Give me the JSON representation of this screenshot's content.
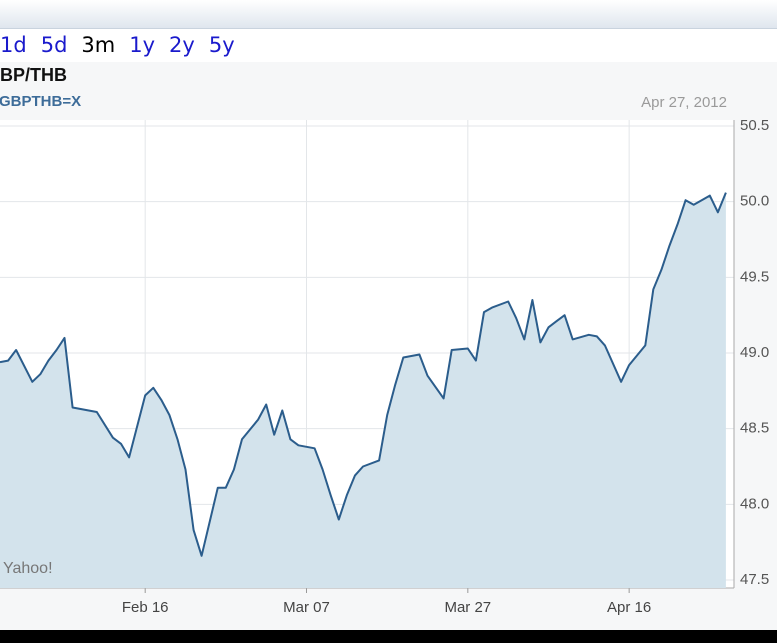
{
  "range_links": [
    "1d",
    "5d",
    "3m",
    "1y",
    "2y",
    "5y"
  ],
  "selected_link": "3m",
  "chart_data": {
    "type": "area",
    "title": "BP/THB",
    "subtitle": "GBPTHB=X",
    "date_label": "Apr 27, 2012",
    "watermark": "Yahoo!",
    "color": "#2b5d8c",
    "fill_color": "#d3e3ec",
    "grid": true,
    "x": [
      "2012-01-29",
      "2012-01-30",
      "2012-01-31",
      "2012-02-02",
      "2012-02-03",
      "2012-02-04",
      "2012-02-05",
      "2012-02-06",
      "2012-02-07",
      "2012-02-09",
      "2012-02-10",
      "2012-02-12",
      "2012-02-13",
      "2012-02-14",
      "2012-02-16",
      "2012-02-17",
      "2012-02-18",
      "2012-02-19",
      "2012-02-20",
      "2012-02-21",
      "2012-02-22",
      "2012-02-23",
      "2012-02-25",
      "2012-02-26",
      "2012-02-27",
      "2012-02-28",
      "2012-03-01",
      "2012-03-02",
      "2012-03-03",
      "2012-03-04",
      "2012-03-05",
      "2012-03-06",
      "2012-03-08",
      "2012-03-09",
      "2012-03-10",
      "2012-03-11",
      "2012-03-12",
      "2012-03-13",
      "2012-03-14",
      "2012-03-16",
      "2012-03-17",
      "2012-03-18",
      "2012-03-19",
      "2012-03-21",
      "2012-03-22",
      "2012-03-24",
      "2012-03-25",
      "2012-03-27",
      "2012-03-28",
      "2012-03-29",
      "2012-03-30",
      "2012-04-01",
      "2012-04-02",
      "2012-04-03",
      "2012-04-04",
      "2012-04-05",
      "2012-04-06",
      "2012-04-07",
      "2012-04-08",
      "2012-04-09",
      "2012-04-11",
      "2012-04-12",
      "2012-04-13",
      "2012-04-15",
      "2012-04-16",
      "2012-04-18",
      "2012-04-19",
      "2012-04-20",
      "2012-04-21",
      "2012-04-22",
      "2012-04-23",
      "2012-04-24",
      "2012-04-25",
      "2012-04-26",
      "2012-04-27",
      "2012-04-28"
    ],
    "values": [
      48.94,
      48.95,
      49.02,
      48.81,
      48.86,
      48.95,
      49.02,
      49.1,
      48.64,
      48.62,
      48.61,
      48.44,
      48.4,
      48.31,
      48.72,
      48.77,
      48.69,
      48.59,
      48.43,
      48.23,
      47.83,
      47.66,
      48.11,
      48.11,
      48.23,
      48.43,
      48.56,
      48.66,
      48.46,
      48.62,
      48.43,
      48.39,
      48.37,
      48.23,
      48.06,
      47.9,
      48.06,
      48.19,
      48.25,
      48.29,
      48.59,
      48.79,
      48.97,
      48.99,
      48.85,
      48.7,
      49.02,
      49.03,
      48.95,
      49.27,
      49.3,
      49.34,
      49.23,
      49.09,
      49.35,
      49.07,
      49.17,
      49.21,
      49.25,
      49.09,
      49.12,
      49.11,
      49.05,
      48.81,
      48.92,
      49.05,
      49.42,
      49.55,
      49.71,
      49.85,
      50.01,
      49.98,
      50.01,
      50.04,
      49.93,
      50.06
    ],
    "xlim": [
      "2012-01-29",
      "2012-04-29"
    ],
    "xticks": [
      {
        "value": "2012-02-16",
        "label": "Feb 16"
      },
      {
        "value": "2012-03-07",
        "label": "Mar 07"
      },
      {
        "value": "2012-03-27",
        "label": "Mar 27"
      },
      {
        "value": "2012-04-16",
        "label": "Apr 16"
      }
    ],
    "ylim": [
      47.5,
      50.5
    ],
    "yticks": [
      47.5,
      {
        "value": 48,
        "label": "48.0"
      },
      48.5,
      {
        "value": 49,
        "label": "49.0"
      },
      49.5,
      {
        "value": 50,
        "label": "50.0"
      },
      50.5
    ]
  }
}
